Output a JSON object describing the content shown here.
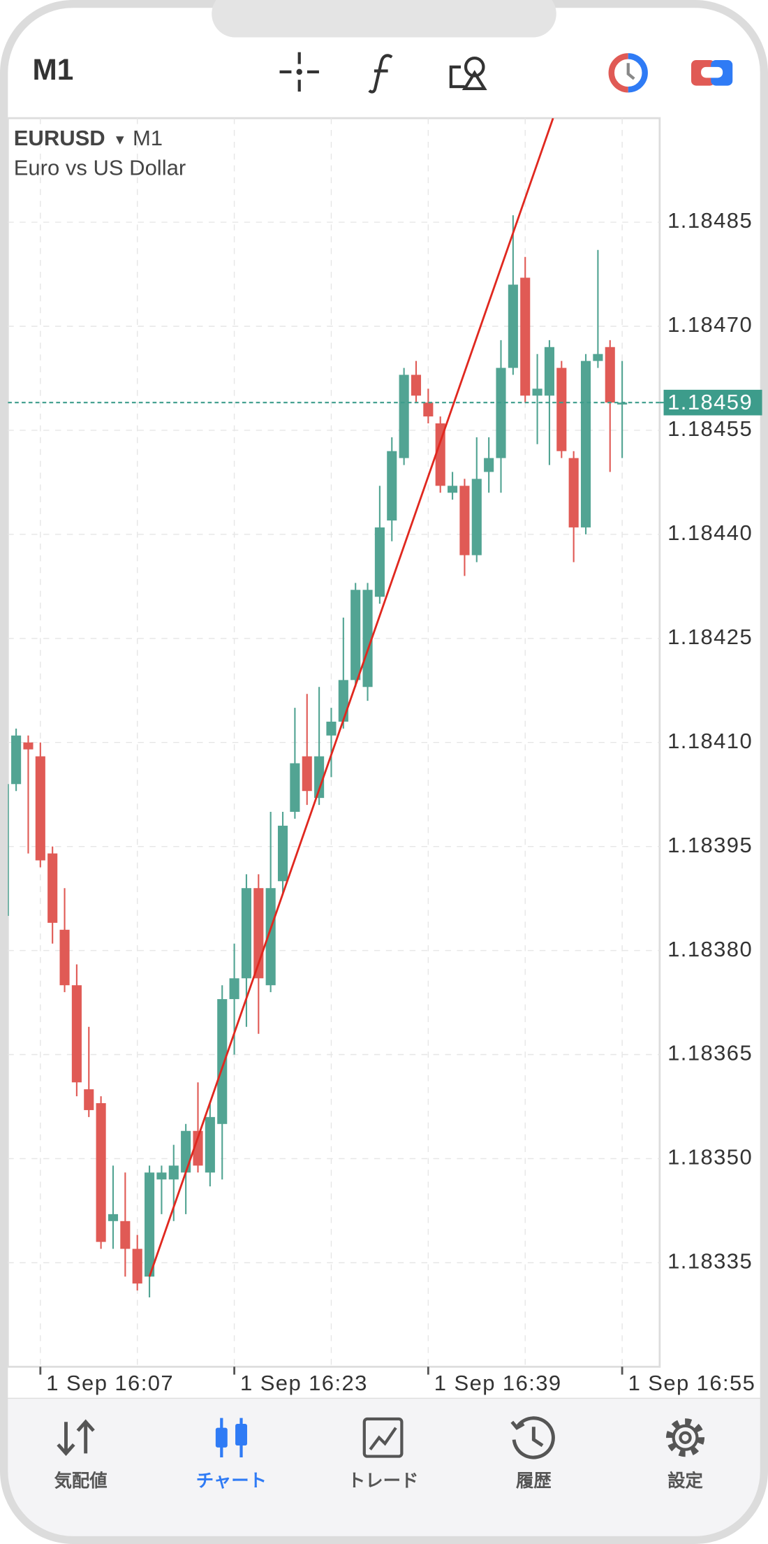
{
  "header": {
    "timeframe": "M1"
  },
  "chart_data": {
    "type": "candlestick",
    "symbol": "EURUSD",
    "timeframe": "M1",
    "description": "Euro vs US Dollar",
    "categories": [
      null,
      null,
      null,
      "1 Sep 16:07",
      null,
      null,
      null,
      null,
      null,
      null,
      null,
      null,
      null,
      null,
      null,
      null,
      null,
      null,
      null,
      "1 Sep 16:23",
      null,
      null,
      null,
      null,
      null,
      null,
      null,
      null,
      null,
      null,
      null,
      null,
      null,
      null,
      null,
      "1 Sep 16:39",
      null,
      null,
      null,
      null,
      null,
      null,
      null,
      null,
      null,
      null,
      null,
      null,
      null,
      null,
      null,
      "1 Sep 16:55"
    ],
    "open": [
      1.18385,
      1.18404,
      1.1841,
      1.18408,
      1.18394,
      1.18383,
      1.18375,
      1.1836,
      1.18358,
      1.18341,
      1.18341,
      1.18337,
      1.18333,
      1.18347,
      1.18347,
      1.18348,
      1.18354,
      1.18348,
      1.18355,
      1.18373,
      1.18376,
      1.18389,
      1.18375,
      1.1839,
      1.184,
      1.18408,
      1.18402,
      1.18411,
      1.18413,
      1.18419,
      1.18418,
      1.18431,
      1.18442,
      1.18451,
      1.18463,
      1.18459,
      1.18456,
      1.18446,
      1.18447,
      1.18437,
      1.18449,
      1.18451,
      1.18464,
      1.18477,
      1.1846,
      1.1846,
      1.18464,
      1.18451,
      1.18441,
      1.18465,
      1.18467,
      1.18459
    ],
    "high": [
      1.18405,
      1.18412,
      1.18411,
      1.1841,
      1.18395,
      1.18389,
      1.18378,
      1.18369,
      1.18359,
      1.18349,
      1.18348,
      1.18339,
      1.18349,
      1.18349,
      1.18352,
      1.18355,
      1.18361,
      1.18358,
      1.18375,
      1.18381,
      1.18391,
      1.18391,
      1.184,
      1.184,
      1.18415,
      1.18417,
      1.18418,
      1.18415,
      1.18428,
      1.18433,
      1.18433,
      1.18447,
      1.18454,
      1.18464,
      1.18465,
      1.18461,
      1.18457,
      1.18449,
      1.18448,
      1.18454,
      1.18454,
      1.18468,
      1.18486,
      1.1848,
      1.18466,
      1.18468,
      1.18465,
      1.18452,
      1.18466,
      1.18481,
      1.18468,
      1.18465
    ],
    "low": [
      1.18384,
      1.18403,
      1.18394,
      1.18392,
      1.18381,
      1.18374,
      1.18359,
      1.18356,
      1.18337,
      1.18337,
      1.18333,
      1.18331,
      1.1833,
      1.18342,
      1.18341,
      1.18342,
      1.18348,
      1.18346,
      1.18347,
      1.18365,
      1.18369,
      1.18368,
      1.18374,
      1.18388,
      1.18399,
      1.18401,
      1.18401,
      1.18405,
      1.18412,
      1.18418,
      1.18416,
      1.1843,
      1.18439,
      1.1845,
      1.18459,
      1.18456,
      1.18446,
      1.18445,
      1.18434,
      1.18436,
      1.18446,
      1.18446,
      1.18463,
      1.18459,
      1.18453,
      1.1845,
      1.18451,
      1.18436,
      1.1844,
      1.18464,
      1.18449,
      1.18451
    ],
    "close": [
      1.18404,
      1.18411,
      1.18409,
      1.18393,
      1.18384,
      1.18375,
      1.18361,
      1.18357,
      1.18338,
      1.18342,
      1.18337,
      1.18332,
      1.18348,
      1.18348,
      1.18349,
      1.18354,
      1.18349,
      1.18356,
      1.18373,
      1.18376,
      1.18389,
      1.18376,
      1.18389,
      1.18398,
      1.18407,
      1.18403,
      1.18408,
      1.18413,
      1.18419,
      1.18432,
      1.18432,
      1.18441,
      1.18452,
      1.18463,
      1.1846,
      1.18457,
      1.18447,
      1.18447,
      1.18437,
      1.18448,
      1.18451,
      1.18464,
      1.18476,
      1.1846,
      1.18461,
      1.18467,
      1.18452,
      1.18441,
      1.18465,
      1.18466,
      1.18459,
      1.18459
    ],
    "up_color": "#52a493",
    "down_color": "#e05a55",
    "ylim": [
      1.1832,
      1.185
    ],
    "yticks": [
      1.18335,
      {
        "value": 1.1835,
        "label": "1.18350"
      },
      1.18365,
      {
        "value": 1.1838,
        "label": "1.18380"
      },
      1.18395,
      {
        "value": 1.1841,
        "label": "1.18410"
      },
      1.18425,
      {
        "value": 1.1844,
        "label": "1.18440"
      },
      1.18455,
      {
        "value": 1.1847,
        "label": "1.18470"
      },
      1.18485
    ],
    "current_price": 1.18459,
    "current_color": "#3d9c8b",
    "trendline": {
      "color": "#e0281f",
      "points": [
        {
          "x": 12,
          "y": 1.18333
        },
        {
          "x": 45.3,
          "y": 1.185
        }
      ]
    },
    "grid": true
  },
  "tabs": {
    "items": [
      "気配値",
      "チャート",
      "トレード",
      "履歴",
      "設定"
    ],
    "active": 1,
    "active_color": "#2f7bf5"
  }
}
